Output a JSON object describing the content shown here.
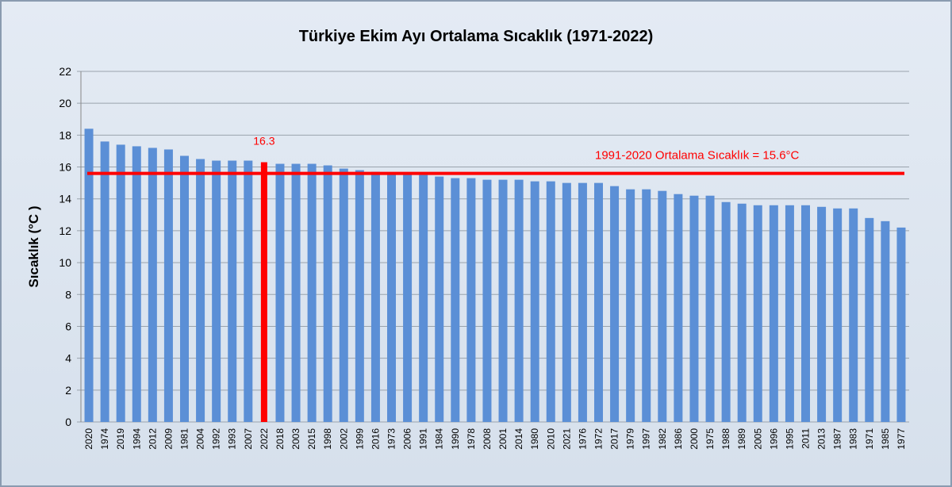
{
  "chart_data": {
    "type": "bar",
    "title": "Türkiye Ekim Ayı Ortalama Sıcaklık (1971-2022)",
    "y_label": "Sıcaklık (°C )",
    "categories": [
      "2020",
      "1974",
      "2019",
      "1994",
      "2012",
      "2009",
      "1981",
      "2004",
      "1992",
      "1993",
      "2007",
      "2022",
      "2018",
      "2003",
      "2015",
      "1998",
      "2002",
      "1999",
      "2016",
      "1973",
      "2006",
      "1991",
      "1984",
      "1990",
      "1978",
      "2008",
      "2001",
      "2014",
      "1980",
      "2010",
      "2021",
      "1976",
      "1972",
      "2017",
      "1979",
      "1997",
      "1982",
      "1986",
      "2000",
      "1975",
      "1988",
      "1989",
      "2005",
      "1996",
      "1995",
      "2011",
      "2013",
      "1987",
      "1983",
      "1971",
      "1985",
      "1977"
    ],
    "values": [
      18.4,
      17.6,
      17.4,
      17.3,
      17.2,
      17.1,
      16.7,
      16.5,
      16.4,
      16.4,
      16.4,
      16.3,
      16.2,
      16.2,
      16.2,
      16.1,
      15.9,
      15.8,
      15.7,
      15.6,
      15.6,
      15.5,
      15.4,
      15.3,
      15.3,
      15.2,
      15.2,
      15.2,
      15.1,
      15.1,
      15.0,
      15.0,
      15.0,
      14.8,
      14.6,
      14.6,
      14.5,
      14.3,
      14.2,
      14.2,
      13.8,
      13.7,
      13.6,
      13.6,
      13.6,
      13.6,
      13.5,
      13.4,
      13.4,
      12.8,
      12.6,
      12.2
    ],
    "color": "#5b8fd6",
    "highlight_category": "2022",
    "highlight_color": "#ff0000",
    "reference_line": {
      "value": 15.6,
      "label": "1991-2020  Ortalama Sıcaklık = 15.6°C",
      "color": "#ff0000"
    },
    "ylim": [
      0,
      22
    ],
    "yticks": [
      0,
      2,
      4,
      6,
      8,
      10,
      12,
      14,
      16,
      18,
      20,
      22
    ],
    "grid": true
  }
}
